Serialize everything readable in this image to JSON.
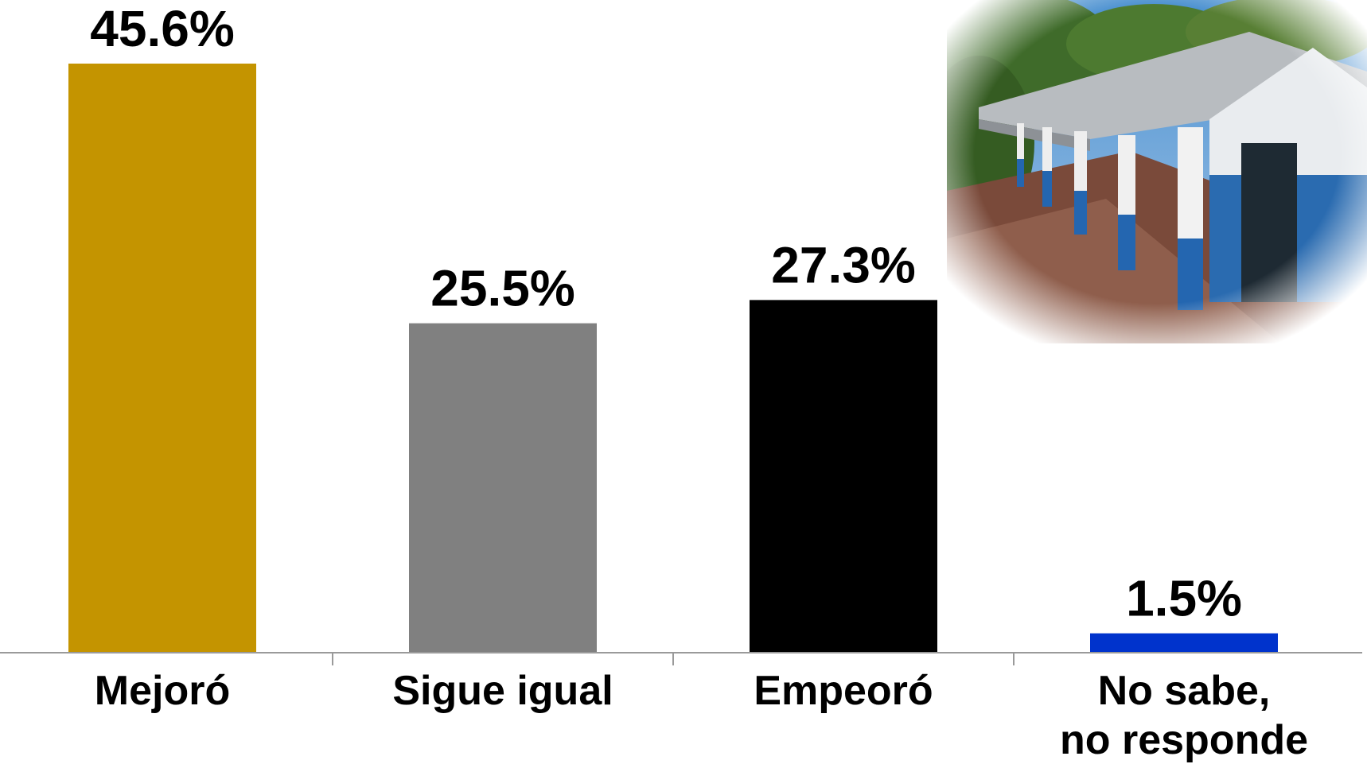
{
  "chart_data": {
    "type": "bar",
    "categories": [
      [
        "Mejoró"
      ],
      [
        "Sigue igual"
      ],
      [
        "Empeoró"
      ],
      [
        "No sabe,",
        "no responde"
      ]
    ],
    "values": [
      45.6,
      25.5,
      27.3,
      1.5
    ],
    "value_labels": [
      "45.6%",
      "25.5%",
      "27.3%",
      "1.5%"
    ],
    "colors": [
      "#C49400",
      "#808080",
      "#000000",
      "#0033CC"
    ],
    "ylim": [
      0,
      46
    ],
    "grid": false,
    "legend": "none"
  },
  "photo": {
    "icon": "school-building-photo"
  }
}
